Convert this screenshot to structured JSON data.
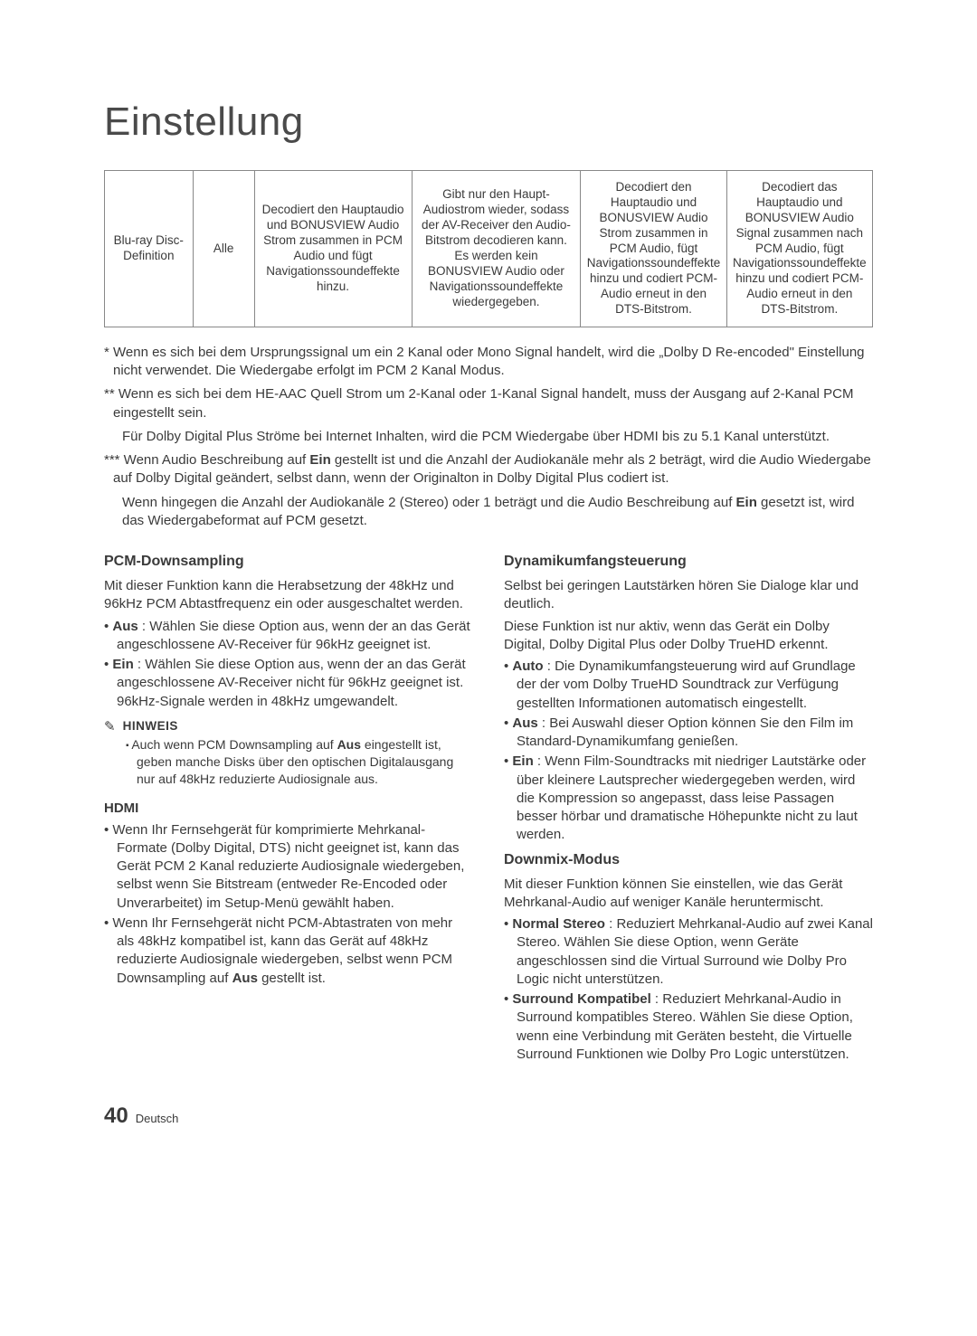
{
  "page": {
    "title": "Einstellung",
    "number": "40",
    "language": "Deutsch"
  },
  "table": {
    "border_color": "#888888",
    "text_color": "#3a3a3a",
    "rows": [
      {
        "c1": "Blu-ray Disc-Definition",
        "c2": "Alle",
        "c3": "Decodiert den Hauptaudio und BONUSVIEW Audio Strom zusammen in PCM Audio und fügt Navigationssoundeffekte hinzu.",
        "c4": "Gibt nur den Haupt-Audiostrom wieder, sodass der AV-Receiver den Audio-Bitstrom decodieren kann. Es werden kein BONUSVIEW Audio oder Navigationssoundeffekte wiedergegeben.",
        "c5": "Decodiert den Hauptaudio und BONUSVIEW Audio Strom zusammen in PCM Audio, fügt Navigationssoundeffekte hinzu und codiert PCM-Audio erneut in den DTS-Bitstrom.",
        "c6": "Decodiert das Hauptaudio und BONUSVIEW Audio Signal zusammen nach PCM Audio, fügt Navigationssoundeffekte hinzu und codiert PCM-Audio erneut in den DTS-Bitstrom."
      }
    ]
  },
  "footnotes": {
    "f1": "* Wenn es sich bei dem Ursprungssignal um ein 2 Kanal oder Mono Signal handelt, wird die „Dolby D Re-encoded\" Einstellung nicht verwendet. Die Wiedergabe erfolgt im PCM 2 Kanal Modus.",
    "f2a": "** Wenn es sich bei dem HE-AAC Quell Strom um 2-Kanal oder 1-Kanal Signal handelt, muss der Ausgang auf 2-Kanal PCM eingestellt sein.",
    "f2b": "Für Dolby Digital Plus Ströme bei Internet Inhalten, wird die PCM Wiedergabe über HDMI bis zu 5.1 Kanal unterstützt.",
    "f3a_pre": "*** Wenn Audio Beschreibung auf ",
    "f3a_bold": "Ein",
    "f3a_post": " gestellt ist und die Anzahl der Audiokanäle mehr als 2 beträgt, wird die Audio Wiedergabe auf Dolby Digital geändert, selbst dann, wenn der Originalton in Dolby Digital Plus codiert ist.",
    "f3b_pre": "Wenn hingegen die Anzahl der Audiokanäle 2 (Stereo) oder 1 beträgt und die Audio Beschreibung auf ",
    "f3b_bold": "Ein",
    "f3b_post": " gesetzt ist, wird das Wiedergabeformat auf PCM gesetzt."
  },
  "left": {
    "pcm": {
      "heading": "PCM-Downsampling",
      "intro": "Mit dieser Funktion kann die Herabsetzung der 48kHz und 96kHz PCM Abtastfrequenz ein oder ausgeschaltet werden.",
      "b1_bold": "Aus",
      "b1_rest": " : Wählen Sie diese Option aus, wenn der an das Gerät angeschlossene AV-Receiver für 96kHz geeignet ist.",
      "b2_bold": "Ein",
      "b2_rest": " : Wählen Sie diese Option aus, wenn der an das Gerät angeschlossene AV-Receiver nicht für 96kHz geeignet ist. 96kHz-Signale werden in 48kHz umgewandelt."
    },
    "note": {
      "label": "HINWEIS",
      "text_pre": "Auch wenn PCM Downsampling auf ",
      "text_bold": "Aus",
      "text_post": " eingestellt ist, geben manche Disks über den optischen Digitalausgang nur auf 48kHz reduzierte Audiosignale aus."
    },
    "hdmi": {
      "heading": "HDMI",
      "b1": "Wenn Ihr Fernsehgerät für komprimierte Mehrkanal-Formate (Dolby Digital, DTS) nicht geeignet ist, kann das Gerät PCM 2 Kanal reduzierte Audiosignale wiedergeben, selbst wenn Sie Bitstream (entweder Re-Encoded oder Unverarbeitet) im Setup-Menü gewählt haben.",
      "b2_pre": "Wenn Ihr Fernsehgerät nicht PCM-Abtastraten von mehr als 48kHz kompatibel ist, kann das Gerät auf 48kHz reduzierte Audiosignale wiedergeben, selbst wenn PCM Downsampling auf ",
      "b2_bold": "Aus",
      "b2_post": " gestellt ist."
    }
  },
  "right": {
    "drc": {
      "heading": "Dynamikumfangsteuerung",
      "p1": "Selbst bei geringen Lautstärken hören Sie Dialoge klar und deutlich.",
      "p2": "Diese Funktion ist nur aktiv, wenn das Gerät ein Dolby Digital, Dolby Digital Plus oder Dolby TrueHD erkennt.",
      "b1_bold": "Auto",
      "b1_rest": " : Die Dynamikumfangsteuerung wird auf Grundlage der der vom Dolby TrueHD Soundtrack zur Verfügung gestellten Informationen automatisch eingestellt.",
      "b2_bold": "Aus",
      "b2_rest": " : Bei Auswahl dieser Option können Sie den Film im Standard-Dynamikumfang genießen.",
      "b3_bold": "Ein",
      "b3_rest": " : Wenn Film-Soundtracks mit niedriger Lautstärke oder über kleinere Lautsprecher wiedergegeben werden, wird die Kompression so angepasst, dass leise Passagen besser hörbar und dramatische Höhepunkte nicht zu laut werden."
    },
    "downmix": {
      "heading": "Downmix-Modus",
      "intro": "Mit dieser Funktion können Sie einstellen, wie das Gerät Mehrkanal-Audio auf weniger Kanäle heruntermischt.",
      "b1_bold": "Normal Stereo",
      "b1_rest": " : Reduziert Mehrkanal-Audio auf zwei Kanal Stereo. Wählen Sie diese Option, wenn Geräte angeschlossen sind die Virtual Surround wie Dolby Pro Logic nicht unterstützen.",
      "b2_bold": "Surround Kompatibel",
      "b2_rest": " : Reduziert Mehrkanal-Audio in Surround kompatibles Stereo. Wählen Sie diese Option, wenn eine Verbindung mit Geräten besteht, die Virtuelle Surround Funktionen wie Dolby Pro Logic unterstützen."
    }
  }
}
